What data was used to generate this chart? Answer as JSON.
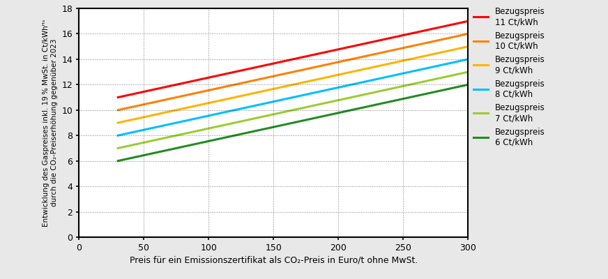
{
  "xlabel": "Preis für ein Emissionszertifikat als CO₂-Preis in Euro/t ohne MwSt.",
  "ylabel": "Entwicklung des Gaspreises inkl. 19 % MwSt. in Ct/kWhᴴˢ\ndurch die CO₂-Preiserhöhung gegenüber 2023",
  "x_start": 30,
  "x_end": 300,
  "xlim": [
    0,
    300
  ],
  "ylim": [
    0,
    18
  ],
  "xticks": [
    0,
    50,
    100,
    150,
    200,
    250,
    300
  ],
  "yticks": [
    0,
    2,
    4,
    6,
    8,
    10,
    12,
    14,
    16,
    18
  ],
  "co2_ref": 30,
  "slope": 0.02222,
  "series": [
    {
      "label": "Bezugspreis\n11 Ct/kWh",
      "base": 11,
      "color": "#FF0000"
    },
    {
      "label": "Bezugspreis\n10 Ct/kWh",
      "base": 10,
      "color": "#FF8000"
    },
    {
      "label": "Bezugspreis\n9 Ct/kWh",
      "base": 9,
      "color": "#FFB300"
    },
    {
      "label": "Bezugspreis\n8 Ct/kWh",
      "base": 8,
      "color": "#00BFFF"
    },
    {
      "label": "Bezugspreis\n7 Ct/kWh",
      "base": 7,
      "color": "#9ACD32"
    },
    {
      "label": "Bezugspreis\n6 Ct/kWh",
      "base": 6,
      "color": "#228B22"
    }
  ],
  "linewidth": 2.2,
  "background_color": "#e8e8e8",
  "plot_bg_color": "#ffffff",
  "grid_color": "#000000",
  "grid_linestyle": ":",
  "grid_alpha": 0.5,
  "grid_linewidth": 0.7,
  "spine_linewidth": 1.5,
  "tick_labelsize": 9,
  "xlabel_fontsize": 9,
  "ylabel_fontsize": 7.5,
  "legend_fontsize": 8.5
}
